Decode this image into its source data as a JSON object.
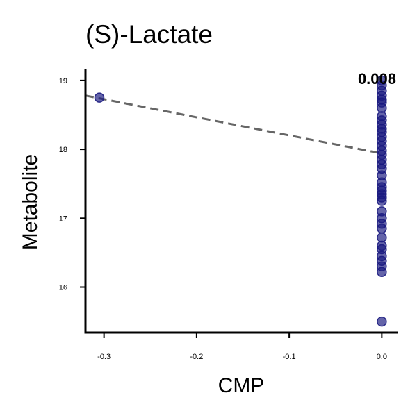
{
  "chart_data": {
    "type": "scatter",
    "title": "(S)-Lactate",
    "xlabel": "CMP",
    "ylabel": "Metabolite",
    "xlim": [
      -0.32,
      0.017
    ],
    "ylim": [
      15.34,
      19.16
    ],
    "xticks": [
      -0.3,
      -0.2,
      -0.1,
      0.0
    ],
    "xtick_labels": [
      "-0.3",
      "-0.2",
      "-0.1",
      "0.0"
    ],
    "yticks": [
      16,
      17,
      18,
      19
    ],
    "ytick_labels": [
      "16",
      "17",
      "18",
      "19"
    ],
    "annotation": "0.008",
    "grid": false,
    "series": [
      {
        "color": "#1a1a80",
        "points": [
          {
            "x": -0.305,
            "y": 18.75
          },
          {
            "x": 0.0,
            "y": 19.0
          },
          {
            "x": 0.0,
            "y": 18.93
          },
          {
            "x": 0.0,
            "y": 18.85
          },
          {
            "x": 0.0,
            "y": 18.78
          },
          {
            "x": 0.0,
            "y": 18.72
          },
          {
            "x": 0.0,
            "y": 18.68
          },
          {
            "x": 0.0,
            "y": 18.6
          },
          {
            "x": 0.0,
            "y": 18.48
          },
          {
            "x": 0.0,
            "y": 18.42
          },
          {
            "x": 0.0,
            "y": 18.36
          },
          {
            "x": 0.0,
            "y": 18.3
          },
          {
            "x": 0.0,
            "y": 18.25
          },
          {
            "x": 0.0,
            "y": 18.18
          },
          {
            "x": 0.0,
            "y": 18.12
          },
          {
            "x": 0.0,
            "y": 18.05
          },
          {
            "x": 0.0,
            "y": 17.98
          },
          {
            "x": 0.0,
            "y": 17.92
          },
          {
            "x": 0.0,
            "y": 17.85
          },
          {
            "x": 0.0,
            "y": 17.78
          },
          {
            "x": 0.0,
            "y": 17.72
          },
          {
            "x": 0.0,
            "y": 17.62
          },
          {
            "x": 0.0,
            "y": 17.52
          },
          {
            "x": 0.0,
            "y": 17.45
          },
          {
            "x": 0.0,
            "y": 17.4
          },
          {
            "x": 0.0,
            "y": 17.35
          },
          {
            "x": 0.0,
            "y": 17.3
          },
          {
            "x": 0.0,
            "y": 17.25
          },
          {
            "x": 0.0,
            "y": 17.1
          },
          {
            "x": 0.0,
            "y": 17.0
          },
          {
            "x": 0.0,
            "y": 16.92
          },
          {
            "x": 0.0,
            "y": 16.85
          },
          {
            "x": 0.0,
            "y": 16.72
          },
          {
            "x": 0.0,
            "y": 16.6
          },
          {
            "x": 0.0,
            "y": 16.55
          },
          {
            "x": 0.0,
            "y": 16.45
          },
          {
            "x": 0.0,
            "y": 16.38
          },
          {
            "x": 0.0,
            "y": 16.3
          },
          {
            "x": 0.0,
            "y": 16.22
          },
          {
            "x": 0.0,
            "y": 15.5
          }
        ]
      }
    ],
    "trend_line": {
      "style": "dashed",
      "color": "#666666",
      "x": [
        -0.32,
        0.0
      ],
      "y": [
        18.78,
        17.94
      ]
    }
  }
}
